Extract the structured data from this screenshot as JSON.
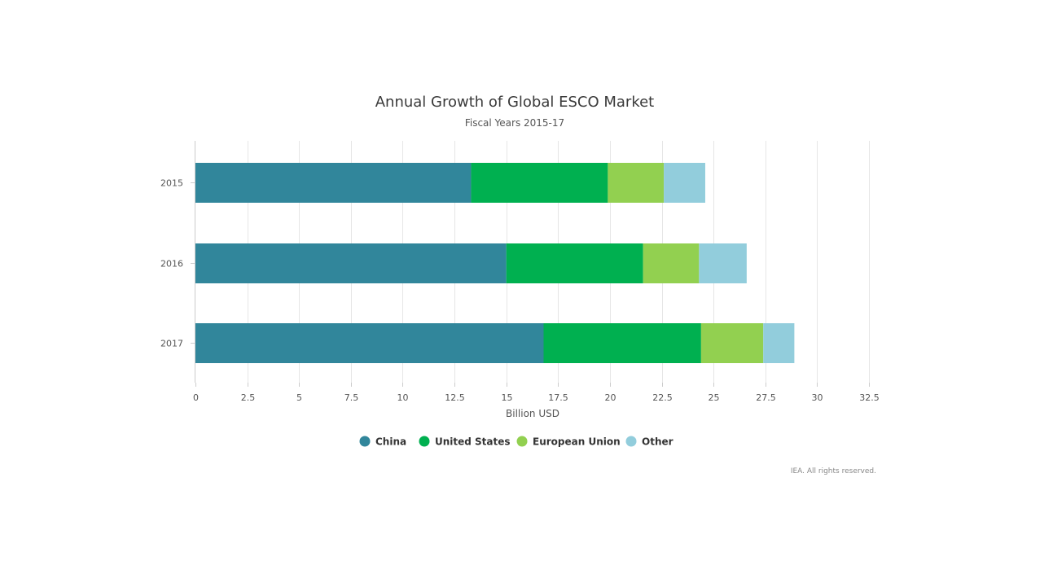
{
  "chart_data": {
    "type": "bar",
    "orientation": "horizontal",
    "stacked": true,
    "title": "Annual Growth of Global ESCO Market",
    "subtitle": "Fiscal Years 2015-17",
    "xlabel": "Billion USD",
    "ylabel": "",
    "categories": [
      "2015",
      "2016",
      "2017"
    ],
    "xlim": [
      0,
      32.5
    ],
    "xticks": [
      "0",
      "2.5",
      "5",
      "7.5",
      "10",
      "12.5",
      "15",
      "17.5",
      "20",
      "22.5",
      "25",
      "27.5",
      "30",
      "32.5"
    ],
    "grid": true,
    "legend_position": "bottom-center",
    "series": [
      {
        "name": "China",
        "color": "#31869b",
        "values": [
          13.3,
          15.0,
          16.8
        ]
      },
      {
        "name": "United States",
        "color": "#00b050",
        "values": [
          6.6,
          6.6,
          7.6
        ]
      },
      {
        "name": "European Union",
        "color": "#92d050",
        "values": [
          2.7,
          2.7,
          3.0
        ]
      },
      {
        "name": "Other",
        "color": "#92cddc",
        "values": [
          2.0,
          2.3,
          1.5
        ]
      }
    ],
    "credit": "IEA. All rights reserved."
  }
}
